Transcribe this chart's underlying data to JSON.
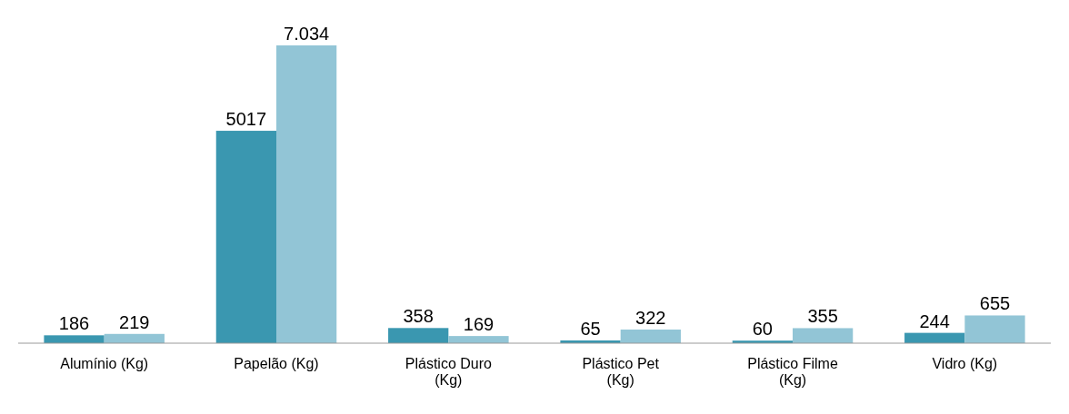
{
  "chart_data": {
    "type": "bar",
    "categories": [
      "Alumínio (Kg)",
      "Papelão (Kg)",
      "Plástico Duro (Kg)",
      "Plástico Pet (Kg)",
      "Plástico Filme (Kg)",
      "Vidro (Kg)"
    ],
    "series": [
      {
        "color": "#3a97b0",
        "values": [
          186,
          5017,
          358,
          65,
          60,
          244
        ],
        "value_labels": [
          "186",
          "5017",
          "358",
          "65",
          "60",
          "244"
        ]
      },
      {
        "color": "#92c5d6",
        "values": [
          219,
          7034,
          169,
          322,
          355,
          655
        ],
        "value_labels": [
          "219",
          "7.034",
          "169",
          "322",
          "355",
          "655"
        ]
      }
    ]
  }
}
